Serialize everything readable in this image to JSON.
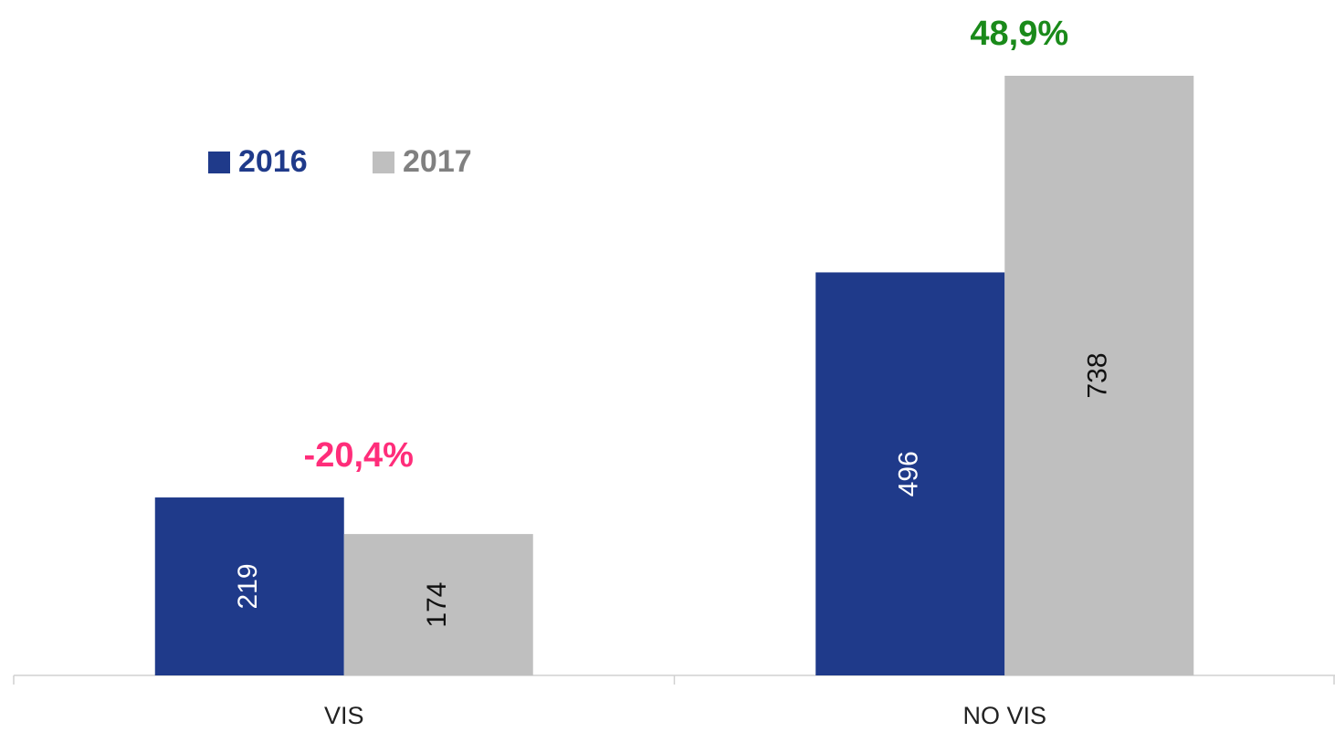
{
  "chart_data": {
    "type": "bar",
    "categories": [
      "VIS",
      "NO VIS"
    ],
    "series": [
      {
        "name": "2016",
        "color": "#1f3a8a",
        "values": [
          219,
          496
        ]
      },
      {
        "name": "2017",
        "color": "#bfbfbf",
        "values": [
          174,
          738
        ]
      }
    ],
    "annotations": [
      {
        "text": "-20,4%",
        "color": "#ff2d7a"
      },
      {
        "text": "48,9%",
        "color": "#1a8a1a"
      }
    ],
    "legend": "top-left"
  }
}
